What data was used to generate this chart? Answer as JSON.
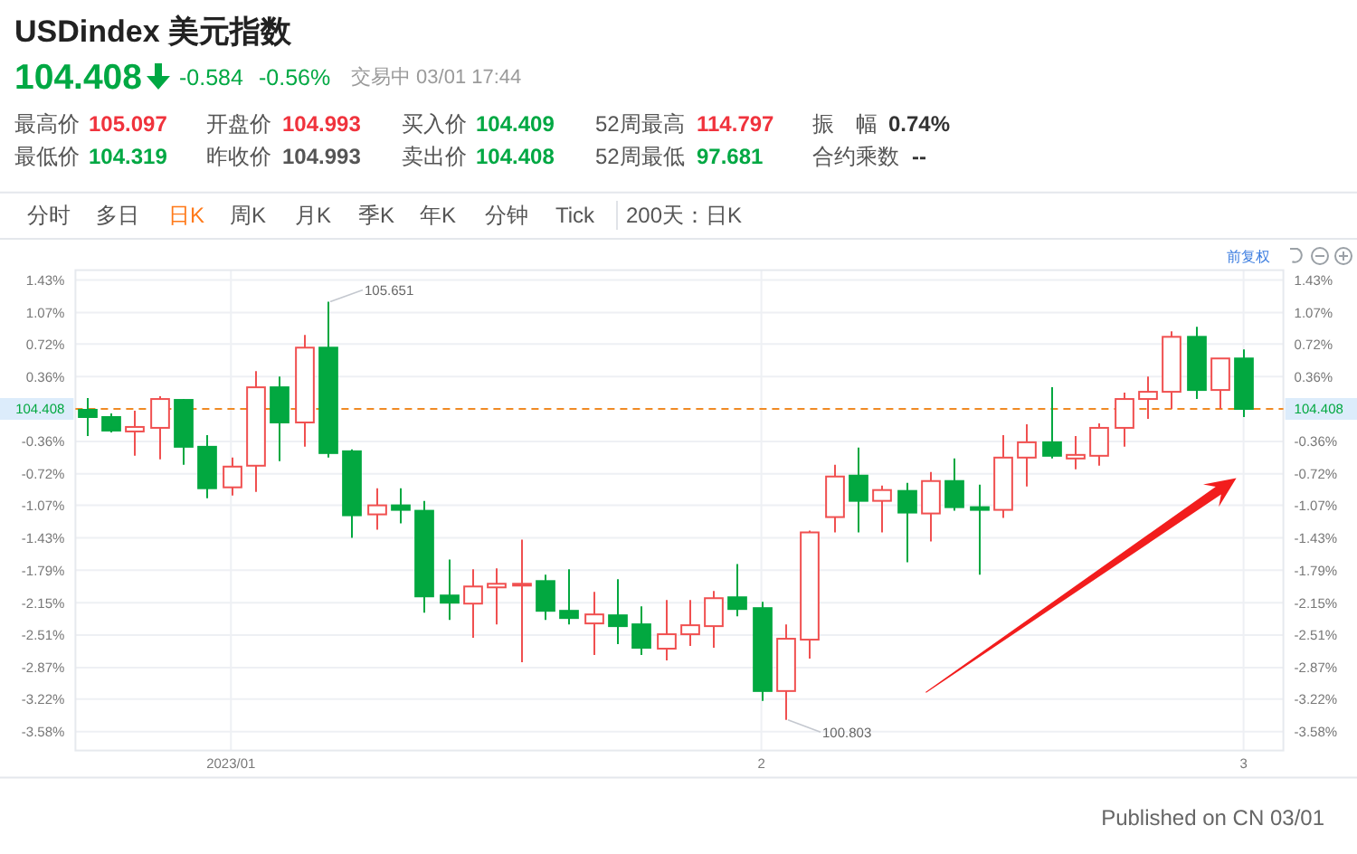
{
  "chart_data": {
    "type": "candlestick",
    "title": "USDindex 美元指数",
    "categories": [
      null,
      null,
      null,
      null,
      null,
      null,
      "2023/01",
      null,
      null,
      null,
      null,
      null,
      null,
      null,
      null,
      null,
      null,
      null,
      null,
      null,
      null,
      null,
      null,
      null,
      null,
      null,
      null,
      null,
      "2",
      null,
      null,
      null,
      null,
      null,
      null,
      null,
      null,
      null,
      null,
      null,
      null,
      null,
      null,
      null,
      null,
      null,
      null,
      null,
      "3"
    ],
    "ohlc": [
      [
        -0.01,
        0.12,
        -0.3,
        -0.09
      ],
      [
        -0.09,
        -0.05,
        -0.26,
        -0.24
      ],
      [
        -0.25,
        -0.02,
        -0.52,
        -0.2
      ],
      [
        -0.21,
        0.14,
        -0.56,
        0.11
      ],
      [
        0.1,
        0.11,
        -0.62,
        -0.42
      ],
      [
        -0.42,
        -0.29,
        -0.99,
        -0.88
      ],
      [
        -0.87,
        -0.54,
        -0.96,
        -0.64
      ],
      [
        -0.63,
        0.42,
        -0.92,
        0.24
      ],
      [
        0.24,
        0.36,
        -0.58,
        -0.15
      ],
      [
        -0.15,
        0.82,
        -0.42,
        0.68
      ],
      [
        0.68,
        1.19,
        -0.54,
        -0.49
      ],
      [
        -0.47,
        -0.45,
        -1.43,
        -1.18
      ],
      [
        -1.17,
        -0.88,
        -1.34,
        -1.07
      ],
      [
        -1.07,
        -0.88,
        -1.27,
        -1.12
      ],
      [
        -1.13,
        -1.02,
        -2.26,
        -2.08
      ],
      [
        -2.07,
        -1.67,
        -2.34,
        -2.15
      ],
      [
        -2.16,
        -1.78,
        -2.54,
        -1.97
      ],
      [
        -1.98,
        -1.77,
        -2.39,
        -1.94
      ],
      [
        -1.96,
        -1.45,
        -2.81,
        -1.94
      ],
      [
        -1.91,
        -1.84,
        -2.34,
        -2.24
      ],
      [
        -2.24,
        -1.78,
        -2.39,
        -2.32
      ],
      [
        -2.38,
        -2.03,
        -2.73,
        -2.28
      ],
      [
        -2.29,
        -1.89,
        -2.61,
        -2.41
      ],
      [
        -2.39,
        -2.19,
        -2.73,
        -2.65
      ],
      [
        -2.66,
        -2.12,
        -2.79,
        -2.5
      ],
      [
        -2.5,
        -2.12,
        -2.63,
        -2.4
      ],
      [
        -2.41,
        -2.02,
        -2.65,
        -2.1
      ],
      [
        -2.09,
        -1.72,
        -2.3,
        -2.22
      ],
      [
        -2.21,
        -2.14,
        -3.24,
        -3.13
      ],
      [
        -3.13,
        -2.39,
        -3.45,
        -2.55
      ],
      [
        -2.56,
        -1.35,
        -2.77,
        -1.37
      ],
      [
        -1.2,
        -0.62,
        -1.37,
        -0.75
      ],
      [
        -0.74,
        -0.43,
        -1.37,
        -1.02
      ],
      [
        -1.02,
        -0.85,
        -1.37,
        -0.9
      ],
      [
        -0.91,
        -0.82,
        -1.7,
        -1.15
      ],
      [
        -1.16,
        -0.7,
        -1.47,
        -0.8
      ],
      [
        -0.8,
        -0.55,
        -1.13,
        -1.09
      ],
      [
        -1.09,
        -0.84,
        -1.84,
        -1.12
      ],
      [
        -1.12,
        -0.29,
        -1.21,
        -0.54
      ],
      [
        -0.54,
        -0.17,
        -0.86,
        -0.37
      ],
      [
        -0.37,
        0.24,
        -0.55,
        -0.52
      ],
      [
        -0.55,
        -0.3,
        -0.67,
        -0.51
      ],
      [
        -0.52,
        -0.16,
        -0.63,
        -0.21
      ],
      [
        -0.21,
        0.18,
        -0.42,
        0.11
      ],
      [
        0.11,
        0.36,
        -0.11,
        0.19
      ],
      [
        0.19,
        0.86,
        0.0,
        0.8
      ],
      [
        0.8,
        0.91,
        0.11,
        0.21
      ],
      [
        0.21,
        0.56,
        0.0,
        0.56
      ],
      [
        0.56,
        0.66,
        -0.09,
        0.0
      ]
    ],
    "colors": [
      "#02a840",
      "#02a840",
      "#f05050",
      "#f05050",
      "#02a840",
      "#02a840",
      "#f05050",
      "#f05050",
      "#02a840",
      "#f05050",
      "#02a840",
      "#02a840",
      "#f05050",
      "#02a840",
      "#02a840",
      "#02a840",
      "#f05050",
      "#f05050",
      "#f05050",
      "#02a840",
      "#02a840",
      "#f05050",
      "#02a840",
      "#02a840",
      "#f05050",
      "#f05050",
      "#f05050",
      "#02a840",
      "#02a840",
      "#f05050",
      "#f05050",
      "#f05050",
      "#02a840",
      "#f05050",
      "#02a840",
      "#f05050",
      "#02a840",
      "#02a840",
      "#f05050",
      "#f05050",
      "#02a840",
      "#f05050",
      "#f05050",
      "#f05050",
      "#f05050",
      "#f05050",
      "#02a840",
      "#f05050",
      "#02a840"
    ],
    "ylim": [
      -3.79,
      1.54
    ],
    "yticks": [
      {
        "value": 1.43,
        "label": "1.43%"
      },
      {
        "value": 1.07,
        "label": "1.07%"
      },
      {
        "value": 0.72,
        "label": "0.72%"
      },
      {
        "value": 0.36,
        "label": "0.36%"
      },
      {
        "value": -0.36,
        "label": "-0.36%"
      },
      {
        "value": -0.72,
        "label": "-0.72%"
      },
      {
        "value": -1.07,
        "label": "-1.07%"
      },
      {
        "value": -1.43,
        "label": "-1.43%"
      },
      {
        "value": -1.79,
        "label": "-1.79%"
      },
      {
        "value": -2.15,
        "label": "-2.15%"
      },
      {
        "value": -2.51,
        "label": "-2.51%"
      },
      {
        "value": -2.87,
        "label": "-2.87%"
      },
      {
        "value": -3.22,
        "label": "-3.22%"
      },
      {
        "value": -3.58,
        "label": "-3.58%"
      }
    ],
    "y2lim": [
      -3.79,
      1.54
    ],
    "y2ticks": [
      {
        "value": 1.43,
        "label": "1.43%"
      },
      {
        "value": 1.07,
        "label": "1.07%"
      },
      {
        "value": 0.72,
        "label": "0.72%"
      },
      {
        "value": 0.36,
        "label": "0.36%"
      },
      {
        "value": -0.36,
        "label": "-0.36%"
      },
      {
        "value": -0.72,
        "label": "-0.72%"
      },
      {
        "value": -1.07,
        "label": "-1.07%"
      },
      {
        "value": -1.43,
        "label": "-1.43%"
      },
      {
        "value": -1.79,
        "label": "-1.79%"
      },
      {
        "value": -2.15,
        "label": "-2.15%"
      },
      {
        "value": -2.51,
        "label": "-2.51%"
      },
      {
        "value": -2.87,
        "label": "-2.87%"
      },
      {
        "value": -3.22,
        "label": "-3.22%"
      },
      {
        "value": -3.58,
        "label": "-3.58%"
      }
    ],
    "grid": true,
    "ref_lines": [
      {
        "axis": "y",
        "value": 0,
        "color": "#f08a24",
        "line_style": "dashed"
      }
    ],
    "annotations": [
      "105.651",
      "100.803",
      "104.408",
      "104.408",
      "-0.584",
      "-0.56%",
      "交易中 03/01 17:44",
      "最高价",
      "105.097",
      "开盘价",
      "104.993",
      "买入价",
      "104.409",
      "52周最高",
      "114.797",
      "振　幅",
      "0.74%",
      "最低价",
      "104.319",
      "昨收价",
      "104.993",
      "卖出价",
      "104.408",
      "52周最低",
      "97.681",
      "合约乘数",
      "--",
      "分时",
      "多日",
      "日K",
      "周K",
      "月K",
      "季K",
      "年K",
      "分钟",
      "Tick",
      "200天：日K",
      "前复权",
      "Published on CN 03/01"
    ]
  }
}
